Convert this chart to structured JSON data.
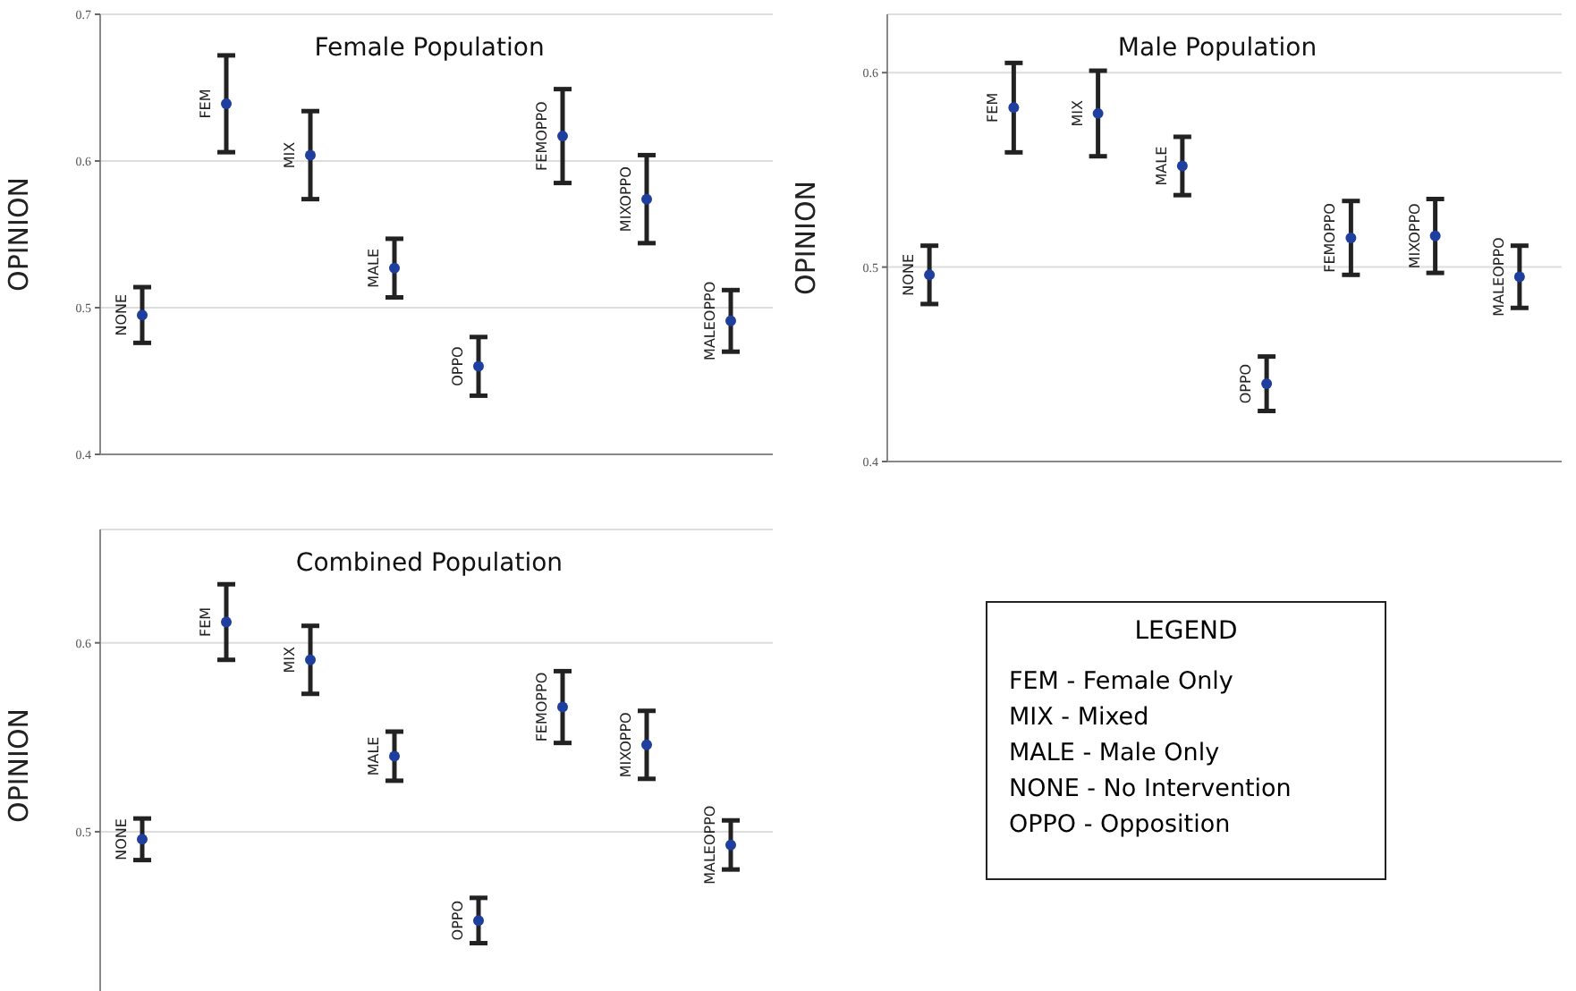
{
  "chart_data": [
    {
      "type": "scatter",
      "title": "Female Population",
      "ylabel": "OPINION",
      "categories": [
        "NONE",
        "FEM",
        "MIX",
        "MALE",
        "OPPO",
        "FEMOPPO",
        "MIXOPPO",
        "MALEOPPO"
      ],
      "tick_labels": "y",
      "grid": "y",
      "marker": "circle",
      "ylim": [
        0.4,
        0.7
      ],
      "yticks": [
        0.4,
        0.5,
        0.6,
        0.7
      ],
      "series": [
        {
          "color": "#1f3f9f",
          "values": [
            0.495,
            0.639,
            0.604,
            0.527,
            0.46,
            0.617,
            0.574,
            0.491
          ],
          "errors": [
            0.019,
            0.033,
            0.03,
            0.02,
            0.02,
            0.032,
            0.03,
            0.021
          ]
        }
      ]
    },
    {
      "type": "scatter",
      "title": "Male Population",
      "ylabel": "OPINION",
      "categories": [
        "NONE",
        "FEM",
        "MIX",
        "MALE",
        "OPPO",
        "FEMOPPO",
        "MIXOPPO",
        "MALEOPPO"
      ],
      "tick_labels": "y",
      "grid": "y",
      "marker": "circle",
      "ylim": [
        0.4,
        0.63
      ],
      "yticks": [
        0.4,
        0.5,
        0.6
      ],
      "series": [
        {
          "color": "#1f3f9f",
          "values": [
            0.496,
            0.582,
            0.579,
            0.552,
            0.44,
            0.515,
            0.516,
            0.495
          ],
          "errors": [
            0.015,
            0.023,
            0.022,
            0.015,
            0.014,
            0.019,
            0.019,
            0.016
          ]
        }
      ]
    },
    {
      "type": "scatter",
      "title": "Combined Population",
      "ylabel": "OPINION",
      "categories": [
        "NONE",
        "FEM",
        "MIX",
        "MALE",
        "OPPO",
        "FEMOPPO",
        "MIXOPPO",
        "MALEOPPO"
      ],
      "tick_labels": "y",
      "grid": "y",
      "marker": "circle",
      "ylim": [
        0.41,
        0.66
      ],
      "yticks": [
        0.5,
        0.6
      ],
      "series": [
        {
          "color": "#1f3f9f",
          "values": [
            0.496,
            0.611,
            0.591,
            0.54,
            0.453,
            0.566,
            0.546,
            0.493
          ],
          "errors": [
            0.011,
            0.02,
            0.018,
            0.013,
            0.012,
            0.019,
            0.018,
            0.013
          ]
        }
      ]
    },
    {
      "type": "other",
      "title": "LEGEND",
      "annotations": [
        "FEM - Female Only",
        "MIX - Mixed",
        "MALE - Male Only",
        "NONE - No Intervention",
        "OPPO - Opposition"
      ]
    }
  ]
}
